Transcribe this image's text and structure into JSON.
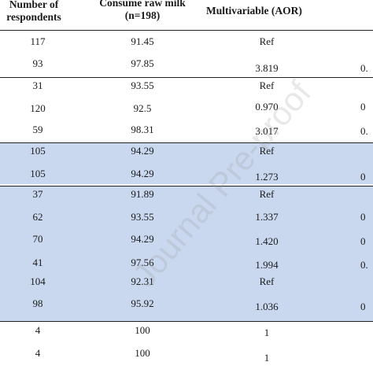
{
  "header": {
    "respondents": "Number of\nrespondents",
    "raw_milk": "Consume raw milk\n(n=198)",
    "aor": "Multivariable (AOR)"
  },
  "rows": [
    {
      "resp": "117",
      "milk": "91.45",
      "aor": "Ref",
      "extra": ""
    },
    {
      "resp": "93",
      "milk": "97.85",
      "aor": "3.819",
      "extra": "0."
    },
    {
      "resp": "31",
      "milk": "93.55",
      "aor": "Ref",
      "extra": ""
    },
    {
      "resp": "120",
      "milk": "92.5",
      "aor": "0.970",
      "extra": "0"
    },
    {
      "resp": "59",
      "milk": "98.31",
      "aor": "3.017",
      "extra": "0."
    },
    {
      "resp": "105",
      "milk": "94.29",
      "aor": "Ref",
      "extra": ""
    },
    {
      "resp": "105",
      "milk": "94.29",
      "aor": "1.273",
      "extra": "0"
    },
    {
      "resp": "37",
      "milk": "91.89",
      "aor": "Ref",
      "extra": ""
    },
    {
      "resp": "62",
      "milk": "93.55",
      "aor": "1.337",
      "extra": "0"
    },
    {
      "resp": "70",
      "milk": "94.29",
      "aor": "1.420",
      "extra": "0"
    },
    {
      "resp": "41",
      "milk": "97.56",
      "aor": "1.994",
      "extra": "0."
    },
    {
      "resp": "104",
      "milk": "92.31",
      "aor": "Ref",
      "extra": ""
    },
    {
      "resp": "98",
      "milk": "95.92",
      "aor": "1.036",
      "extra": "0"
    },
    {
      "resp": "4",
      "milk": "100",
      "aor": "1",
      "extra": ""
    },
    {
      "resp": "4",
      "milk": "100",
      "aor": "1",
      "extra": ""
    }
  ],
  "watermark": "Journal Pre-proof",
  "band_color": "#c9d8ef"
}
